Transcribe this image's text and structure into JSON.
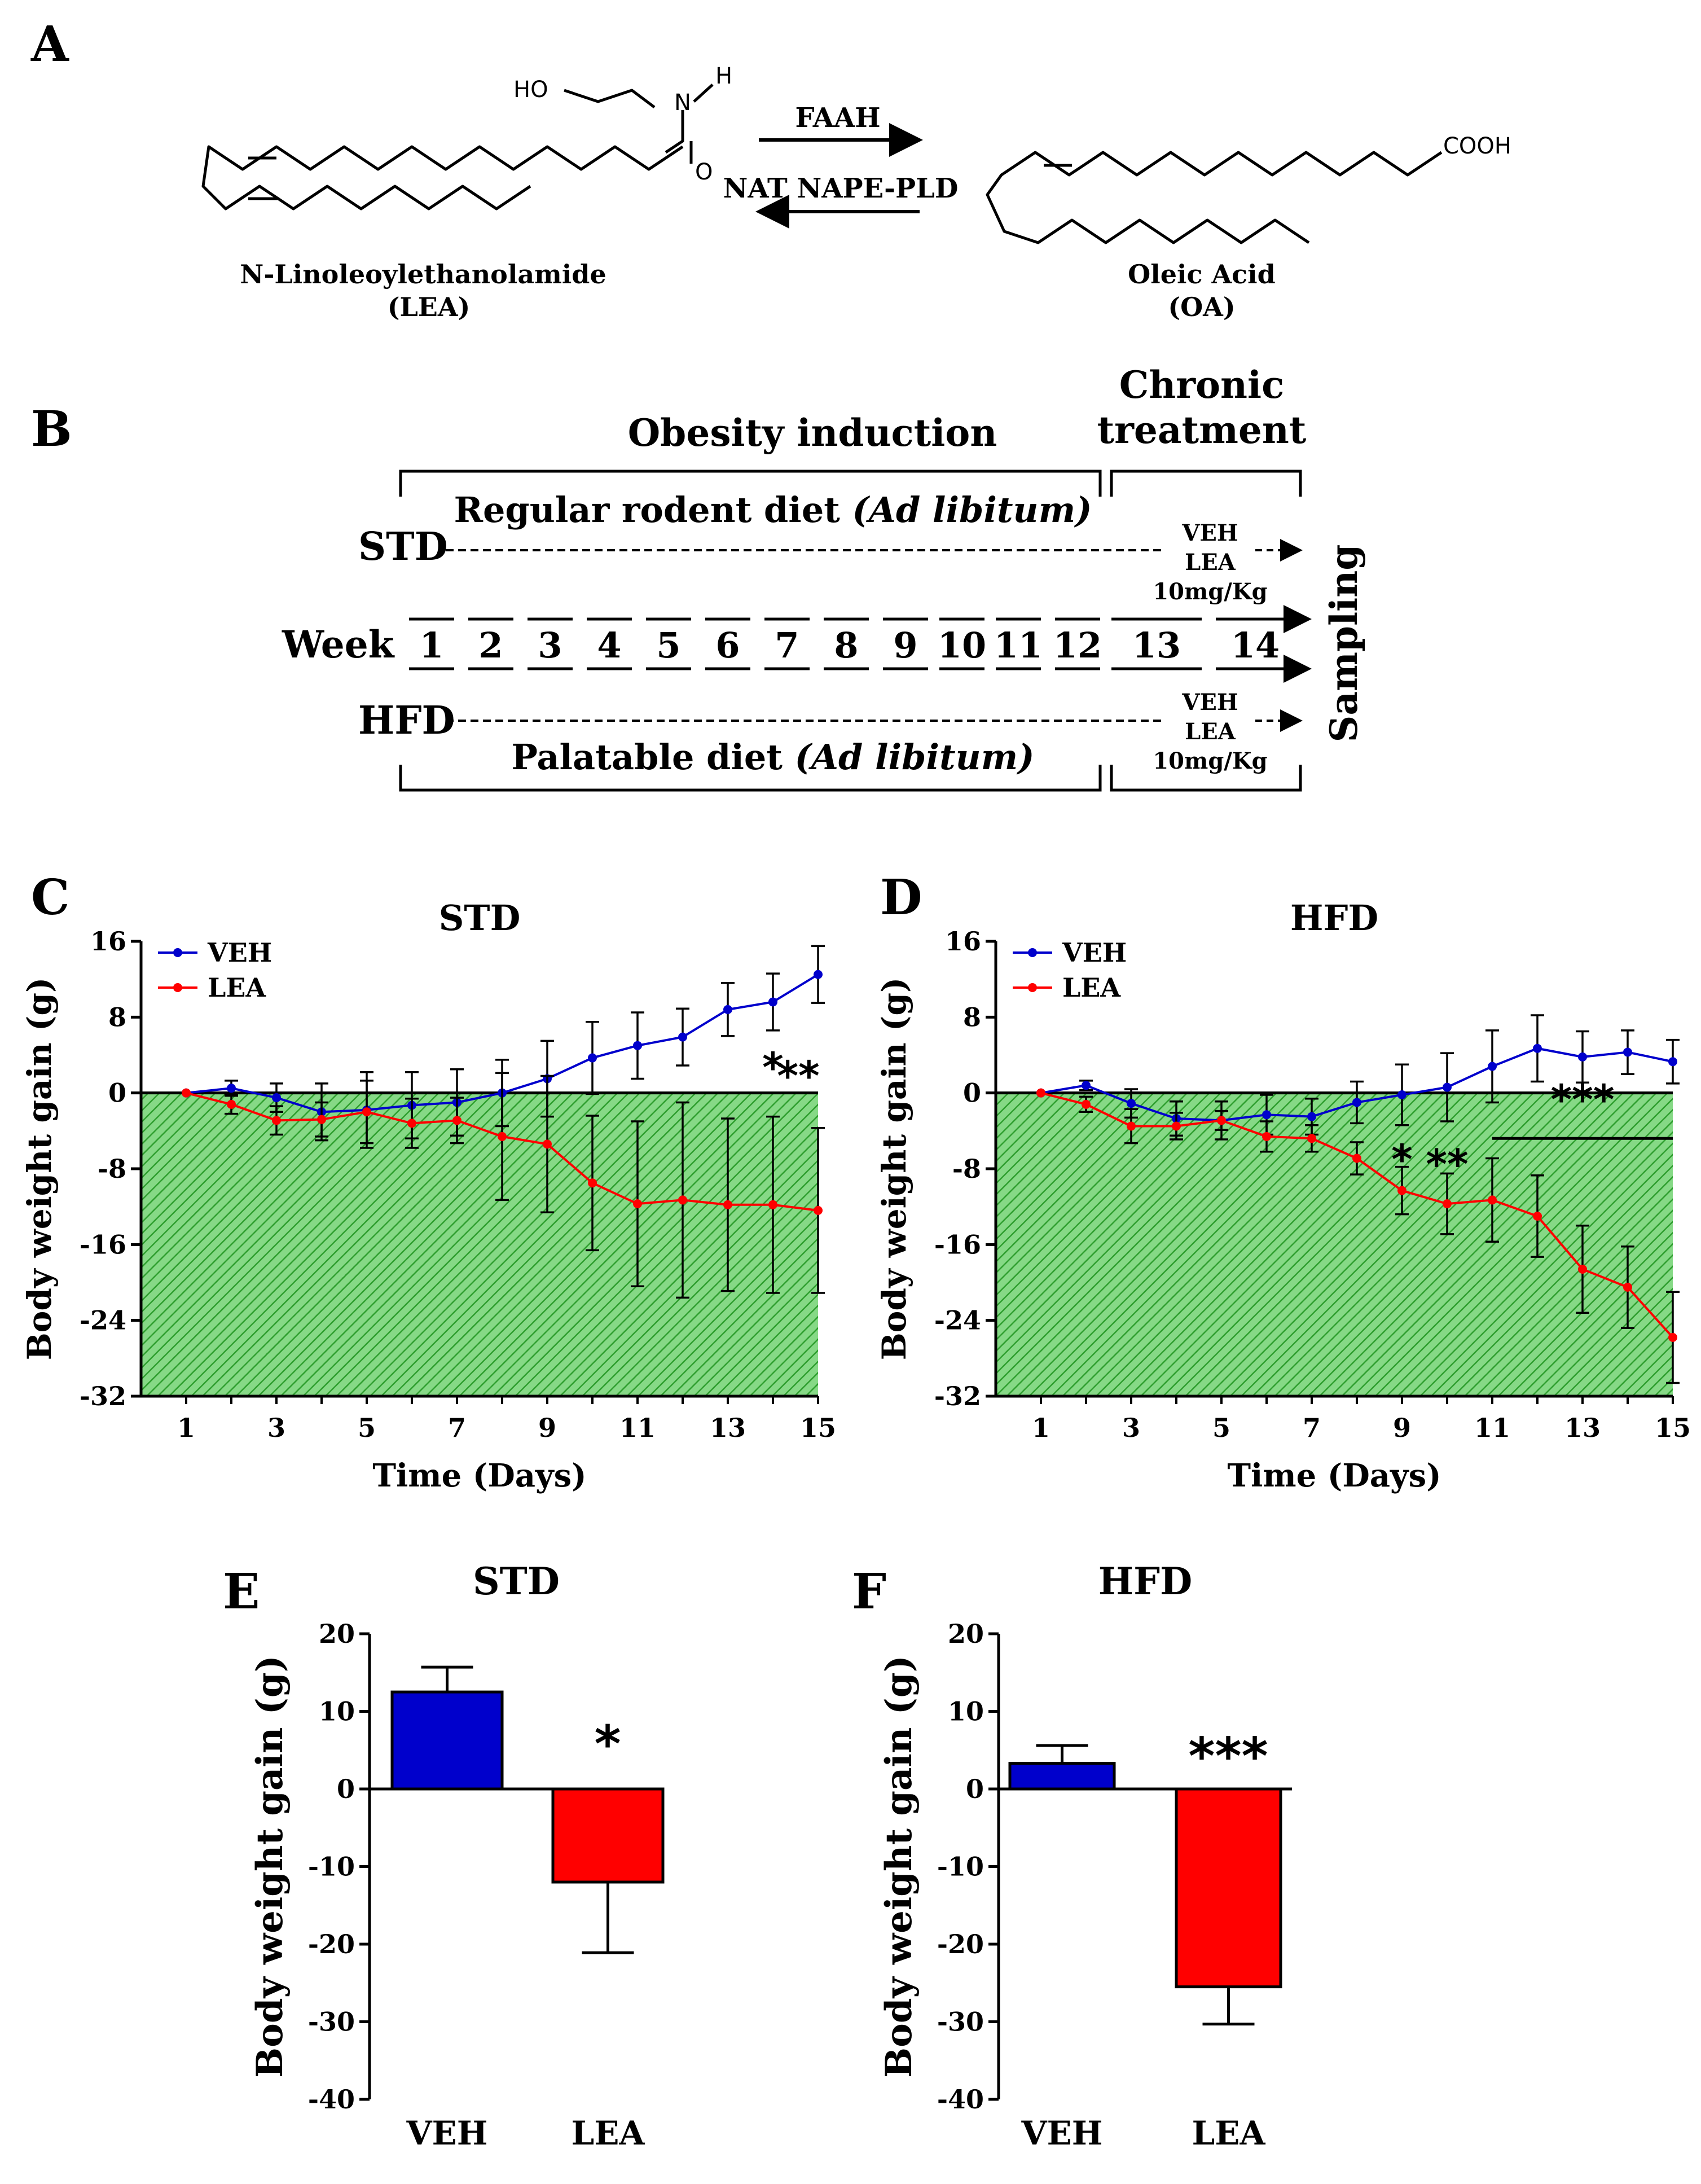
{
  "panel_labels": {
    "A": "A",
    "B": "B",
    "C": "C",
    "D": "D",
    "E": "E",
    "F": "F"
  },
  "panelA": {
    "lea_name": "N-Linoleoylethanolamide",
    "lea_abbrev": "(LEA)",
    "oa_name": "Oleic Acid",
    "oa_abbrev": "(OA)",
    "forward_enzyme": "FAAH",
    "reverse_enzymes": "NAT NAPE-PLD",
    "atoms": {
      "ho": "HO",
      "n": "N",
      "h": "H",
      "o": "O",
      "cooh": "COOH"
    }
  },
  "panelB": {
    "header_induction": "Obesity induction",
    "header_chronic_1": "Chronic",
    "header_chronic_2": "treatment",
    "std_label": "STD",
    "hfd_label": "HFD",
    "std_diet": "Regular rodent diet ",
    "std_diet_italic": "(Ad libitum)",
    "hfd_diet": "Palatable diet ",
    "hfd_diet_italic": "(Ad libitum)",
    "treat_veh": "VEH",
    "treat_lea": "LEA",
    "treat_dose": "10mg/Kg",
    "week_label": "Week",
    "weeks": [
      "1",
      "2",
      "3",
      "4",
      "5",
      "6",
      "7",
      "8",
      "9",
      "10",
      "11",
      "12",
      "13",
      "14"
    ],
    "sampling": "Sampling"
  },
  "colors": {
    "veh": "#0000cc",
    "lea": "#ff0000",
    "hatch_bg": "#7fd67f",
    "hatch_line": "#2aa02a",
    "bar_outline": "#000000"
  },
  "chart_data": [
    {
      "id": "C",
      "type": "line",
      "title": "STD",
      "xlabel": "Time (Days)",
      "ylabel": "Body weight gain (g)",
      "xlim": [
        0,
        15
      ],
      "ylim": [
        -32,
        16
      ],
      "xticks": [
        "1",
        "3",
        "5",
        "7",
        "9",
        "11",
        "13",
        "15"
      ],
      "yticks": [
        "16",
        "8",
        "0",
        "-8",
        "-16",
        "-24",
        "-32"
      ],
      "legend": [
        "VEH",
        "LEA"
      ],
      "legend_position": "top-left",
      "shading": "green hatched region below y = 0",
      "x": [
        1,
        2,
        3,
        4,
        5,
        6,
        7,
        8,
        9,
        10,
        11,
        12,
        13,
        14,
        15
      ],
      "series": [
        {
          "name": "VEH",
          "values": [
            0,
            0.5,
            -0.5,
            -2,
            -1.8,
            -1.3,
            -1,
            0,
            1.5,
            3.7,
            5,
            5.9,
            8.8,
            9.6,
            12.5
          ],
          "errors": [
            0,
            0.8,
            1.5,
            3,
            4,
            3.5,
            3.5,
            3.5,
            4,
            3.8,
            3.5,
            3,
            2.8,
            3,
            3
          ]
        },
        {
          "name": "LEA",
          "values": [
            0,
            -1.2,
            -2.9,
            -2.8,
            -2,
            -3.2,
            -2.9,
            -4.6,
            -5.4,
            -9.5,
            -11.7,
            -11.3,
            -11.8,
            -11.8,
            -12.4
          ],
          "errors": [
            0,
            1,
            1.5,
            1.8,
            3.3,
            2.6,
            2.4,
            6.7,
            7.2,
            7.1,
            8.7,
            10.3,
            9.1,
            9.3,
            8.7
          ]
        }
      ],
      "annotations": [
        "*",
        "**"
      ]
    },
    {
      "id": "D",
      "type": "line",
      "title": "HFD",
      "xlabel": "Time (Days)",
      "ylabel": "Body weight gain (g)",
      "xlim": [
        0,
        15
      ],
      "ylim": [
        -32,
        16
      ],
      "xticks": [
        "1",
        "3",
        "5",
        "7",
        "9",
        "11",
        "13",
        "15"
      ],
      "yticks": [
        "16",
        "8",
        "0",
        "-8",
        "-16",
        "-24",
        "-32"
      ],
      "legend": [
        "VEH",
        "LEA"
      ],
      "legend_position": "top-left",
      "shading": "green hatched region below y = 0",
      "x": [
        1,
        2,
        3,
        4,
        5,
        6,
        7,
        8,
        9,
        10,
        11,
        12,
        13,
        14,
        15
      ],
      "series": [
        {
          "name": "VEH",
          "values": [
            0,
            0.8,
            -1.1,
            -2.7,
            -2.9,
            -2.3,
            -2.5,
            -1,
            -0.2,
            0.6,
            2.8,
            4.7,
            3.8,
            4.3,
            3.3
          ],
          "errors": [
            0,
            0.5,
            1.5,
            1.8,
            2,
            2.1,
            1.9,
            2.2,
            3.2,
            3.6,
            3.8,
            3.5,
            2.7,
            2.3,
            2.3
          ]
        },
        {
          "name": "LEA",
          "values": [
            0,
            -1.2,
            -3.5,
            -3.5,
            -2.9,
            -4.6,
            -4.8,
            -6.9,
            -10.3,
            -11.7,
            -11.3,
            -13,
            -18.6,
            -20.5,
            -25.8
          ],
          "errors": [
            0,
            0.8,
            1.8,
            1.4,
            1,
            1.6,
            1.4,
            1.7,
            2.5,
            3.2,
            4.4,
            4.3,
            4.6,
            4.3,
            4.8
          ]
        }
      ],
      "annotations": [
        "*",
        "**",
        "***"
      ]
    },
    {
      "id": "E",
      "type": "bar",
      "title": "STD",
      "ylabel": "Body weight gain (g)",
      "categories": [
        "VEH",
        "LEA"
      ],
      "values": [
        12.5,
        -12
      ],
      "errors": [
        3.2,
        9.1
      ],
      "ylim": [
        -40,
        20
      ],
      "yticks": [
        "20",
        "10",
        "0",
        "-10",
        "-20",
        "-30",
        "-40"
      ],
      "annotations": [
        "*"
      ]
    },
    {
      "id": "F",
      "type": "bar",
      "title": "HFD",
      "ylabel": "Body weight gain (g)",
      "categories": [
        "VEH",
        "LEA"
      ],
      "values": [
        3.3,
        -25.5
      ],
      "errors": [
        2.3,
        4.8
      ],
      "ylim": [
        -40,
        20
      ],
      "yticks": [
        "20",
        "10",
        "0",
        "-10",
        "-20",
        "-30",
        "-40"
      ],
      "annotations": [
        "***"
      ]
    }
  ]
}
